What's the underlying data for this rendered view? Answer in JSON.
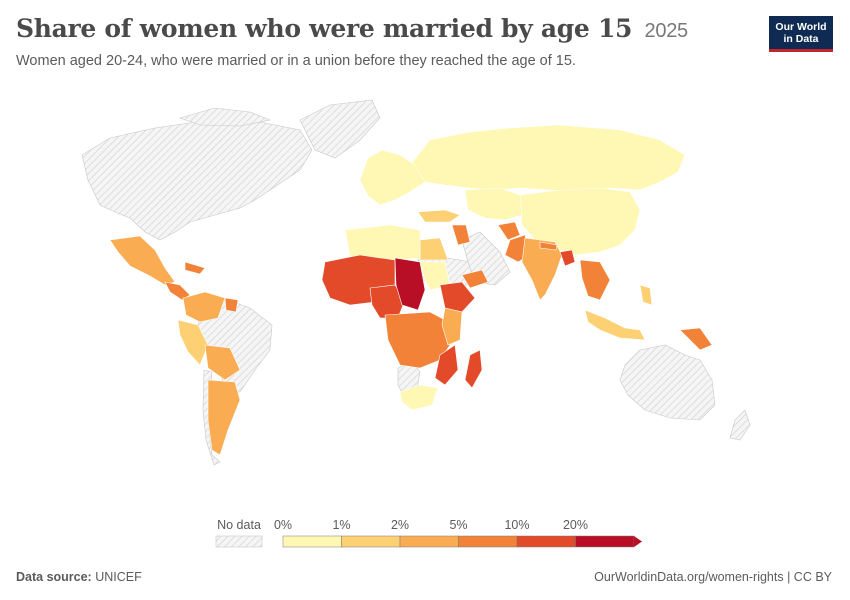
{
  "header": {
    "title": "Share of women who were married by age 15",
    "year": "2025",
    "subtitle": "Women aged 20-24, who were married or in a union before they reached the age of 15."
  },
  "logo": {
    "line1": "Our World",
    "line2": "in Data"
  },
  "legend": {
    "no_data_label": "No data",
    "bins": [
      {
        "label": "0%",
        "color": "#fff7b4"
      },
      {
        "label": "1%",
        "color": "#fdd074"
      },
      {
        "label": "2%",
        "color": "#f9ac52"
      },
      {
        "label": "5%",
        "color": "#f38239"
      },
      {
        "label": "10%",
        "color": "#e34a2a"
      },
      {
        "label": "20%",
        "color": "#b80f26"
      }
    ]
  },
  "footer": {
    "source_prefix": "Data source:",
    "source": "UNICEF",
    "license": "OurWorldinData.org/women-rights | CC BY"
  }
}
